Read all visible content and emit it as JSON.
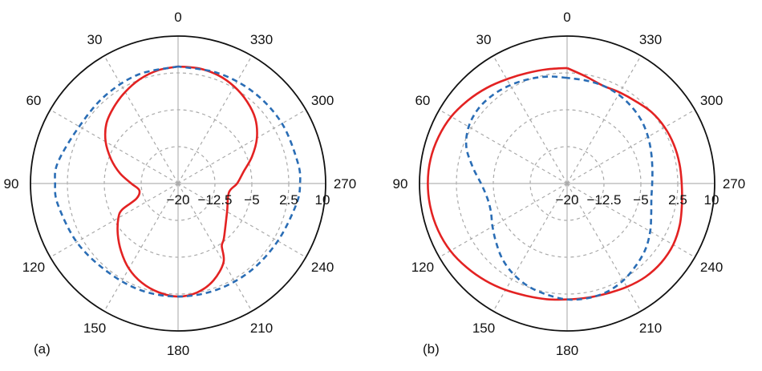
{
  "chart_data": [
    {
      "type": "polar",
      "panel_label": "(a)",
      "angle_labels": [
        "0",
        "30",
        "60",
        "90",
        "120",
        "150",
        "180",
        "210",
        "240",
        "270",
        "300",
        "330"
      ],
      "radial_labels": [
        "−20",
        "−12.5",
        "−5",
        "2.5",
        "10"
      ],
      "r_range": [
        -20,
        10
      ],
      "angle_direction": "counterclockwise",
      "zero_location": "top",
      "grid": true,
      "colors": {
        "solid": "#e32222",
        "dashed": "#2a6db5"
      },
      "series": [
        {
          "style": "solid",
          "theta": [
            0,
            10,
            20,
            30,
            40,
            50,
            60,
            70,
            80,
            90,
            100,
            110,
            115,
            120,
            130,
            140,
            150,
            160,
            170,
            180,
            190,
            200,
            210,
            215,
            220,
            240,
            260,
            270,
            280,
            290,
            300,
            310,
            320,
            330,
            340,
            350,
            360
          ],
          "r": [
            3.8,
            3.4,
            2.6,
            1.5,
            0.3,
            -1.0,
            -3.0,
            -5.5,
            -8.0,
            -10.5,
            -12.0,
            -11.0,
            -7.5,
            -6.0,
            -4.0,
            -2.0,
            0.0,
            1.5,
            2.5,
            3.0,
            2.5,
            1.0,
            -1.5,
            -4.5,
            -5.5,
            -8.5,
            -9.5,
            -8.0,
            -6.5,
            -4.0,
            -1.5,
            0.5,
            1.8,
            2.8,
            3.5,
            3.8,
            3.8
          ]
        },
        {
          "style": "dashed",
          "theta": [
            0,
            20,
            40,
            60,
            80,
            90,
            100,
            120,
            140,
            160,
            180,
            200,
            220,
            240,
            260,
            270,
            280,
            300,
            320,
            340,
            360
          ],
          "r": [
            3.8,
            3.6,
            3.2,
            3.2,
            4.8,
            5.0,
            4.8,
            3.8,
            3.0,
            3.0,
            3.0,
            3.0,
            3.1,
            3.4,
            4.4,
            4.8,
            4.7,
            4.4,
            4.1,
            3.9,
            3.8
          ]
        }
      ]
    },
    {
      "type": "polar",
      "panel_label": "(b)",
      "angle_labels": [
        "0",
        "30",
        "60",
        "90",
        "120",
        "150",
        "180",
        "210",
        "240",
        "270",
        "300",
        "330"
      ],
      "radial_labels": [
        "−20",
        "−12.5",
        "−5",
        "2.5",
        "10"
      ],
      "r_range": [
        -20,
        10
      ],
      "angle_direction": "counterclockwise",
      "zero_location": "top",
      "grid": true,
      "colors": {
        "solid": "#e32222",
        "dashed": "#2a6db5"
      },
      "series": [
        {
          "style": "solid",
          "theta": [
            0,
            10,
            20,
            30,
            40,
            50,
            60,
            70,
            80,
            90,
            100,
            110,
            120,
            130,
            140,
            150,
            160,
            170,
            180,
            190,
            200,
            210,
            220,
            230,
            240,
            250,
            260,
            270,
            280,
            290,
            300,
            310,
            320,
            330,
            340,
            350,
            360
          ],
          "r": [
            3.5,
            3.6,
            3.9,
            4.5,
            5.4,
            6.3,
            7.2,
            7.8,
            8.2,
            8.3,
            8.2,
            7.9,
            7.4,
            6.6,
            5.8,
            5.0,
            4.3,
            3.9,
            3.6,
            3.6,
            3.8,
            4.3,
            4.8,
            5.0,
            4.9,
            4.4,
            3.7,
            3.3,
            3.2,
            3.1,
            2.9,
            2.5,
            1.8,
            1.4,
            1.2,
            2.1,
            3.5
          ]
        },
        {
          "style": "dashed",
          "theta": [
            0,
            10,
            20,
            30,
            40,
            50,
            60,
            70,
            80,
            90,
            100,
            110,
            120,
            130,
            140,
            150,
            160,
            170,
            180,
            190,
            200,
            210,
            220,
            230,
            240,
            250,
            260,
            270,
            280,
            290,
            300,
            310,
            320,
            330,
            340,
            350,
            360
          ],
          "r": [
            1.5,
            2.1,
            2.6,
            3.1,
            3.5,
            3.6,
            3.1,
            1.8,
            -0.5,
            -2.5,
            -3.5,
            -3.5,
            -2.5,
            -1.2,
            0.3,
            1.5,
            2.4,
            3.0,
            3.6,
            3.7,
            3.5,
            2.8,
            1.8,
            0.8,
            -0.5,
            -1.8,
            -2.6,
            -2.7,
            -2.4,
            -1.8,
            -1.0,
            -0.2,
            0.4,
            0.9,
            1.2,
            1.3,
            1.5
          ]
        }
      ]
    }
  ]
}
